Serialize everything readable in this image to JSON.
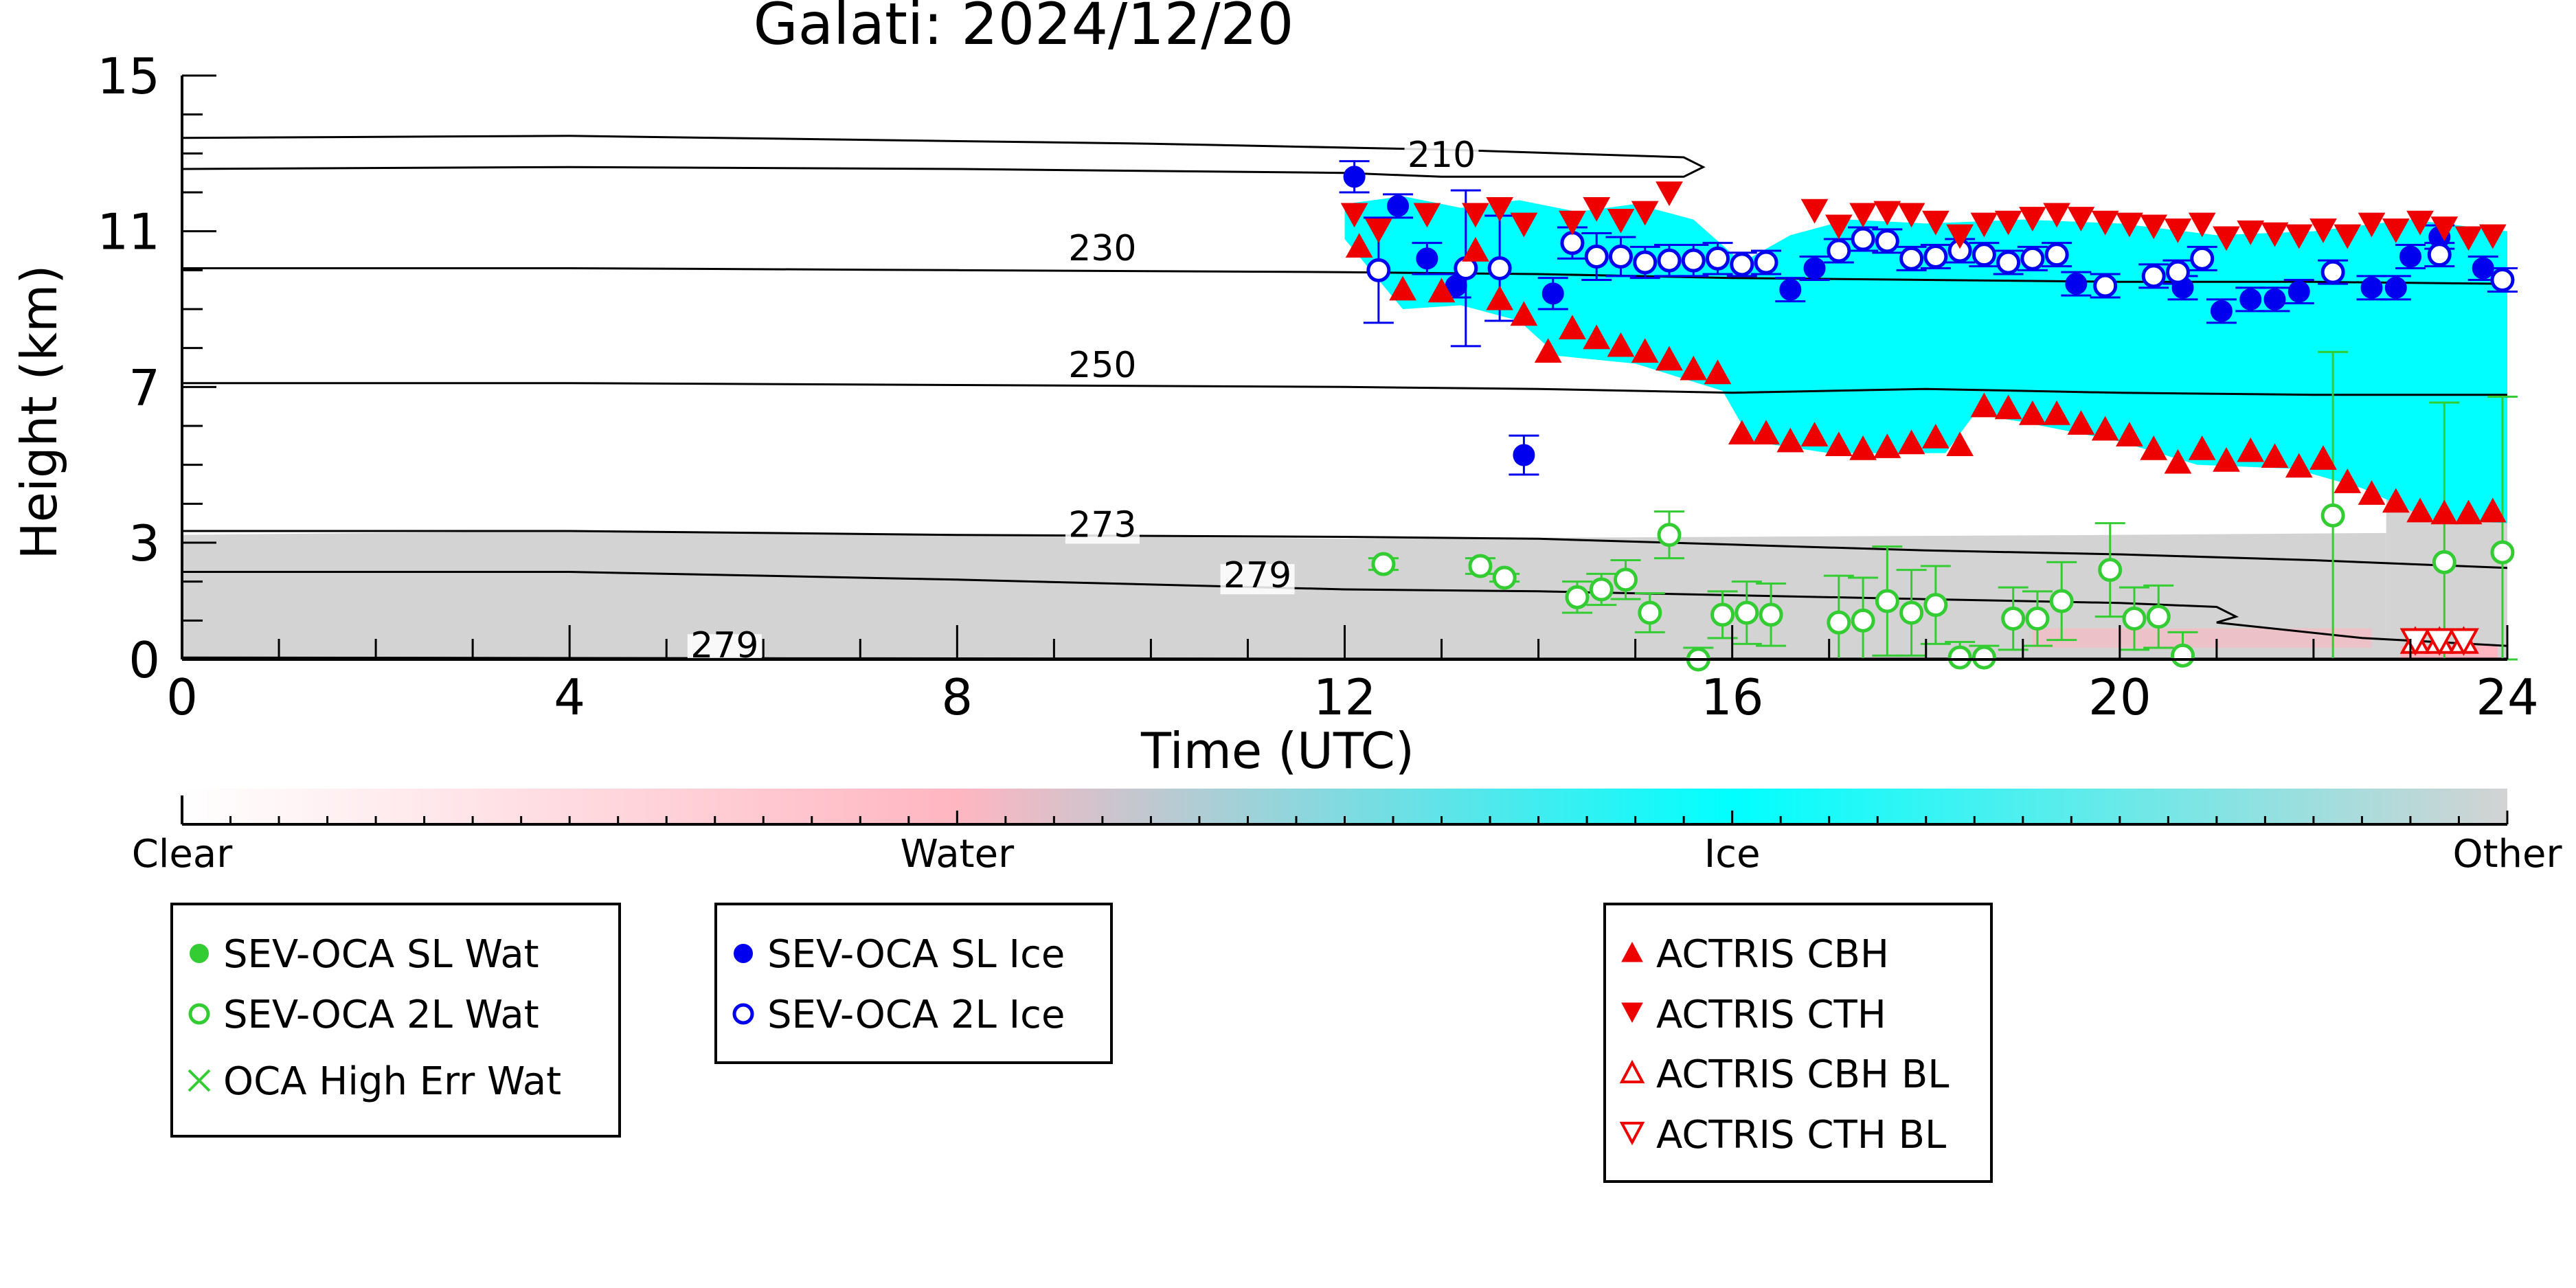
{
  "chart_data": {
    "type": "scatter",
    "title": "Galati: 2024/12/20",
    "xlabel": "Time (UTC)",
    "ylabel": "Height (km)",
    "xlim": [
      0,
      24
    ],
    "ylim": [
      0,
      15
    ],
    "xticks": [
      0,
      4,
      8,
      12,
      16,
      20,
      24
    ],
    "xtick_labels": [
      "0",
      "4",
      "8",
      "12",
      "16",
      "20",
      "24"
    ],
    "yticks": [
      0,
      3,
      7,
      11,
      15
    ],
    "ytick_labels": [
      "0",
      "3",
      "7",
      "11",
      "15"
    ],
    "grid": false,
    "colorbar": {
      "labels": [
        "Clear",
        "Water",
        "Ice",
        "Other"
      ],
      "colors": [
        "#ffffff",
        "#ffb6c1",
        "#00ffff",
        "#d3d3d3"
      ]
    },
    "contours": [
      {
        "label": "210",
        "label_at": [
          13.0,
          12.65
        ],
        "points": [
          [
            0,
            12.6
          ],
          [
            4,
            12.65
          ],
          [
            8,
            12.6
          ],
          [
            12,
            12.5
          ],
          [
            13,
            12.4
          ],
          [
            15.5,
            12.4
          ],
          [
            15.7,
            12.65
          ],
          [
            15.5,
            12.9
          ],
          [
            13,
            13.1
          ],
          [
            10,
            13.25
          ],
          [
            4,
            13.45
          ],
          [
            0,
            13.4
          ]
        ]
      },
      {
        "label": "230",
        "label_at": [
          9.5,
          10.25
        ],
        "points": [
          [
            0,
            10.05
          ],
          [
            4,
            10.05
          ],
          [
            8,
            10.0
          ],
          [
            12,
            9.95
          ],
          [
            14,
            9.9
          ],
          [
            16,
            9.8
          ],
          [
            18,
            9.75
          ],
          [
            20,
            9.7
          ],
          [
            22,
            9.7
          ],
          [
            24,
            9.65
          ]
        ]
      },
      {
        "label": "250",
        "label_at": [
          9.5,
          7.25
        ],
        "points": [
          [
            0,
            7.1
          ],
          [
            4,
            7.1
          ],
          [
            8,
            7.05
          ],
          [
            12,
            7.0
          ],
          [
            14,
            6.95
          ],
          [
            16,
            6.85
          ],
          [
            18,
            6.95
          ],
          [
            20,
            6.85
          ],
          [
            22,
            6.8
          ],
          [
            24,
            6.8
          ]
        ]
      },
      {
        "label": "273",
        "label_at": [
          9.5,
          3.15
        ],
        "points": [
          [
            0,
            3.3
          ],
          [
            4,
            3.3
          ],
          [
            8,
            3.2
          ],
          [
            12,
            3.15
          ],
          [
            14,
            3.1
          ],
          [
            16,
            2.95
          ],
          [
            18,
            2.8
          ],
          [
            20,
            2.7
          ],
          [
            22,
            2.55
          ],
          [
            24,
            2.35
          ]
        ]
      },
      {
        "label": "279",
        "label_at": [
          11.1,
          1.85
        ],
        "points": [
          [
            0,
            2.25
          ],
          [
            4,
            2.25
          ],
          [
            8,
            2.05
          ],
          [
            12,
            1.8
          ],
          [
            14,
            1.75
          ],
          [
            16,
            1.65
          ],
          [
            18,
            1.55
          ],
          [
            20,
            1.45
          ],
          [
            21.0,
            1.35
          ],
          [
            21.2,
            1.1
          ],
          [
            21.0,
            0.95
          ],
          [
            22.5,
            0.55
          ],
          [
            24,
            0.35
          ]
        ]
      },
      {
        "label": "279",
        "label_at": [
          5.6,
          0.05
        ],
        "points": [
          [
            0,
            0.05
          ],
          [
            6,
            0.03
          ],
          [
            12,
            0.02
          ],
          [
            18,
            0.02
          ],
          [
            24,
            0.02
          ]
        ]
      }
    ],
    "series": [
      {
        "name": "SEV-OCA SL Wat",
        "marker": "circle",
        "fill": true,
        "color": "#33cc33",
        "points": []
      },
      {
        "name": "SEV-OCA 2L Wat",
        "marker": "circle",
        "fill": false,
        "color": "#33cc33",
        "points": [
          [
            12.4,
            2.45,
            0.15
          ],
          [
            13.4,
            2.4,
            0.2
          ],
          [
            13.65,
            2.1,
            0.1
          ],
          [
            14.4,
            1.6,
            0.4
          ],
          [
            14.65,
            1.8,
            0.4
          ],
          [
            14.9,
            2.05,
            0.5
          ],
          [
            15.15,
            1.2,
            0.5
          ],
          [
            15.35,
            3.2,
            0.6
          ],
          [
            15.65,
            0.0,
            0.3
          ],
          [
            15.9,
            1.15,
            0.6
          ],
          [
            16.15,
            1.2,
            0.8
          ],
          [
            16.4,
            1.15,
            0.8
          ],
          [
            17.1,
            0.95,
            1.2
          ],
          [
            17.35,
            1.0,
            1.1
          ],
          [
            17.6,
            1.5,
            1.4
          ],
          [
            17.85,
            1.2,
            1.1
          ],
          [
            18.1,
            1.4,
            1.0
          ],
          [
            18.35,
            0.05,
            0.4
          ],
          [
            18.6,
            0.05,
            0.3
          ],
          [
            18.9,
            1.05,
            0.8
          ],
          [
            19.15,
            1.05,
            0.7
          ],
          [
            19.4,
            1.5,
            1.0
          ],
          [
            19.9,
            2.3,
            1.2
          ],
          [
            20.15,
            1.05,
            0.8
          ],
          [
            20.4,
            1.1,
            0.8
          ],
          [
            20.65,
            0.1,
            0.6
          ],
          [
            22.2,
            3.7,
            4.2
          ],
          [
            23.35,
            2.5,
            4.1
          ],
          [
            23.95,
            2.75,
            4.0
          ]
        ]
      },
      {
        "name": "OCA High Err Wat",
        "marker": "x",
        "color": "#33cc33",
        "points": []
      },
      {
        "name": "SEV-OCA SL Ice",
        "marker": "circle",
        "fill": true,
        "color": "#0000ee",
        "points": [
          [
            12.1,
            12.4,
            0.4
          ],
          [
            12.55,
            11.65,
            0.3
          ],
          [
            12.85,
            10.3,
            0.4
          ],
          [
            13.15,
            9.6,
            0.3
          ],
          [
            13.85,
            5.25,
            0.5
          ],
          [
            14.15,
            9.4,
            0.4
          ],
          [
            16.6,
            9.5,
            0.3
          ],
          [
            16.85,
            10.05,
            0.3
          ],
          [
            19.55,
            9.65,
            0.3
          ],
          [
            20.65,
            9.55,
            0.3
          ],
          [
            21.05,
            8.95,
            0.3
          ],
          [
            21.35,
            9.25,
            0.3
          ],
          [
            21.6,
            9.25,
            0.3
          ],
          [
            21.85,
            9.45,
            0.3
          ],
          [
            22.6,
            9.55,
            0.3
          ],
          [
            22.85,
            9.55,
            0.3
          ],
          [
            23.0,
            10.35,
            0.3
          ],
          [
            23.3,
            10.85,
            0.3
          ],
          [
            23.75,
            10.05,
            0.3
          ]
        ]
      },
      {
        "name": "SEV-OCA 2L Ice",
        "marker": "circle",
        "fill": false,
        "color": "#0000ee",
        "points": [
          [
            12.35,
            10.0,
            1.35
          ],
          [
            13.25,
            10.05,
            2.0
          ],
          [
            13.6,
            10.05,
            1.35
          ],
          [
            14.35,
            10.7,
            0.4
          ],
          [
            14.6,
            10.35,
            0.6
          ],
          [
            14.85,
            10.35,
            0.5
          ],
          [
            15.1,
            10.2,
            0.4
          ],
          [
            15.35,
            10.25,
            0.4
          ],
          [
            15.6,
            10.25,
            0.4
          ],
          [
            15.85,
            10.3,
            0.4
          ],
          [
            16.1,
            10.15,
            0.3
          ],
          [
            16.35,
            10.2,
            0.3
          ],
          [
            17.1,
            10.5,
            0.3
          ],
          [
            17.35,
            10.8,
            0.3
          ],
          [
            17.6,
            10.75,
            0.3
          ],
          [
            17.85,
            10.3,
            0.3
          ],
          [
            18.1,
            10.35,
            0.3
          ],
          [
            18.35,
            10.5,
            0.3
          ],
          [
            18.6,
            10.4,
            0.3
          ],
          [
            18.85,
            10.2,
            0.3
          ],
          [
            19.1,
            10.3,
            0.3
          ],
          [
            19.35,
            10.4,
            0.3
          ],
          [
            19.85,
            9.6,
            0.3
          ],
          [
            20.35,
            9.85,
            0.3
          ],
          [
            20.6,
            9.95,
            0.3
          ],
          [
            20.85,
            10.3,
            0.3
          ],
          [
            22.2,
            9.95,
            0.3
          ],
          [
            23.3,
            10.4,
            0.3
          ],
          [
            23.95,
            9.75,
            0.3
          ]
        ]
      },
      {
        "name": "ACTRIS CBH",
        "marker": "triangle-up",
        "fill": true,
        "color": "#ee0000",
        "points": [
          [
            12.15,
            10.6
          ],
          [
            12.6,
            9.5
          ],
          [
            13.0,
            9.45
          ],
          [
            13.35,
            10.5
          ],
          [
            13.6,
            9.25
          ],
          [
            13.85,
            8.85
          ],
          [
            14.1,
            7.9
          ],
          [
            14.35,
            8.5
          ],
          [
            14.6,
            8.25
          ],
          [
            14.85,
            8.05
          ],
          [
            15.1,
            7.9
          ],
          [
            15.35,
            7.7
          ],
          [
            15.6,
            7.45
          ],
          [
            15.85,
            7.35
          ],
          [
            16.1,
            5.8
          ],
          [
            16.35,
            5.8
          ],
          [
            16.6,
            5.6
          ],
          [
            16.85,
            5.75
          ],
          [
            17.1,
            5.5
          ],
          [
            17.35,
            5.4
          ],
          [
            17.6,
            5.45
          ],
          [
            17.85,
            5.55
          ],
          [
            18.1,
            5.7
          ],
          [
            18.35,
            5.5
          ],
          [
            18.6,
            6.5
          ],
          [
            18.85,
            6.45
          ],
          [
            19.1,
            6.3
          ],
          [
            19.35,
            6.3
          ],
          [
            19.6,
            6.05
          ],
          [
            19.85,
            5.9
          ],
          [
            20.1,
            5.75
          ],
          [
            20.35,
            5.4
          ],
          [
            20.6,
            5.05
          ],
          [
            20.85,
            5.4
          ],
          [
            21.1,
            5.1
          ],
          [
            21.35,
            5.35
          ],
          [
            21.6,
            5.2
          ],
          [
            21.85,
            4.95
          ],
          [
            22.1,
            5.15
          ],
          [
            22.35,
            4.55
          ],
          [
            22.6,
            4.25
          ],
          [
            22.85,
            4.05
          ],
          [
            23.1,
            3.8
          ],
          [
            23.35,
            3.75
          ],
          [
            23.6,
            3.75
          ],
          [
            23.85,
            3.8
          ]
        ]
      },
      {
        "name": "ACTRIS CTH",
        "marker": "triangle-down",
        "fill": true,
        "color": "#ee0000",
        "points": [
          [
            12.1,
            11.45
          ],
          [
            12.35,
            11.05
          ],
          [
            12.85,
            11.45
          ],
          [
            13.35,
            11.45
          ],
          [
            13.6,
            11.6
          ],
          [
            13.85,
            11.2
          ],
          [
            14.35,
            11.25
          ],
          [
            14.6,
            11.6
          ],
          [
            14.85,
            11.3
          ],
          [
            15.1,
            11.5
          ],
          [
            15.35,
            12.0
          ],
          [
            16.85,
            11.55
          ],
          [
            17.1,
            11.15
          ],
          [
            17.35,
            11.45
          ],
          [
            17.6,
            11.5
          ],
          [
            17.85,
            11.45
          ],
          [
            18.1,
            11.25
          ],
          [
            18.35,
            10.9
          ],
          [
            18.6,
            11.2
          ],
          [
            18.85,
            11.25
          ],
          [
            19.1,
            11.35
          ],
          [
            19.35,
            11.45
          ],
          [
            19.6,
            11.35
          ],
          [
            19.85,
            11.25
          ],
          [
            20.1,
            11.2
          ],
          [
            20.35,
            11.15
          ],
          [
            20.6,
            11.05
          ],
          [
            20.85,
            11.2
          ],
          [
            21.1,
            10.85
          ],
          [
            21.35,
            11.0
          ],
          [
            21.6,
            10.95
          ],
          [
            21.85,
            10.9
          ],
          [
            22.1,
            11.05
          ],
          [
            22.35,
            10.9
          ],
          [
            22.6,
            11.2
          ],
          [
            22.85,
            11.05
          ],
          [
            23.1,
            11.25
          ],
          [
            23.35,
            11.1
          ],
          [
            23.6,
            10.85
          ],
          [
            23.85,
            10.9
          ]
        ]
      },
      {
        "name": "ACTRIS CBH BL",
        "marker": "triangle-up",
        "fill": false,
        "color": "#ee0000",
        "points": [
          [
            23.05,
            0.45
          ],
          [
            23.3,
            0.45
          ],
          [
            23.55,
            0.45
          ]
        ]
      },
      {
        "name": "ACTRIS CTH BL",
        "marker": "triangle-down",
        "fill": false,
        "color": "#ee0000",
        "points": [
          [
            23.05,
            0.5
          ],
          [
            23.3,
            0.5
          ],
          [
            23.55,
            0.5
          ]
        ]
      }
    ],
    "legend_groups": [
      [
        "SEV-OCA SL Wat",
        "SEV-OCA 2L Wat",
        "OCA High Err Wat"
      ],
      [
        "SEV-OCA SL Ice",
        "SEV-OCA 2L Ice"
      ],
      [
        "ACTRIS CBH",
        "ACTRIS CTH",
        "ACTRIS CBH BL",
        "ACTRIS CTH BL"
      ]
    ],
    "legend_placement": "bottom"
  }
}
